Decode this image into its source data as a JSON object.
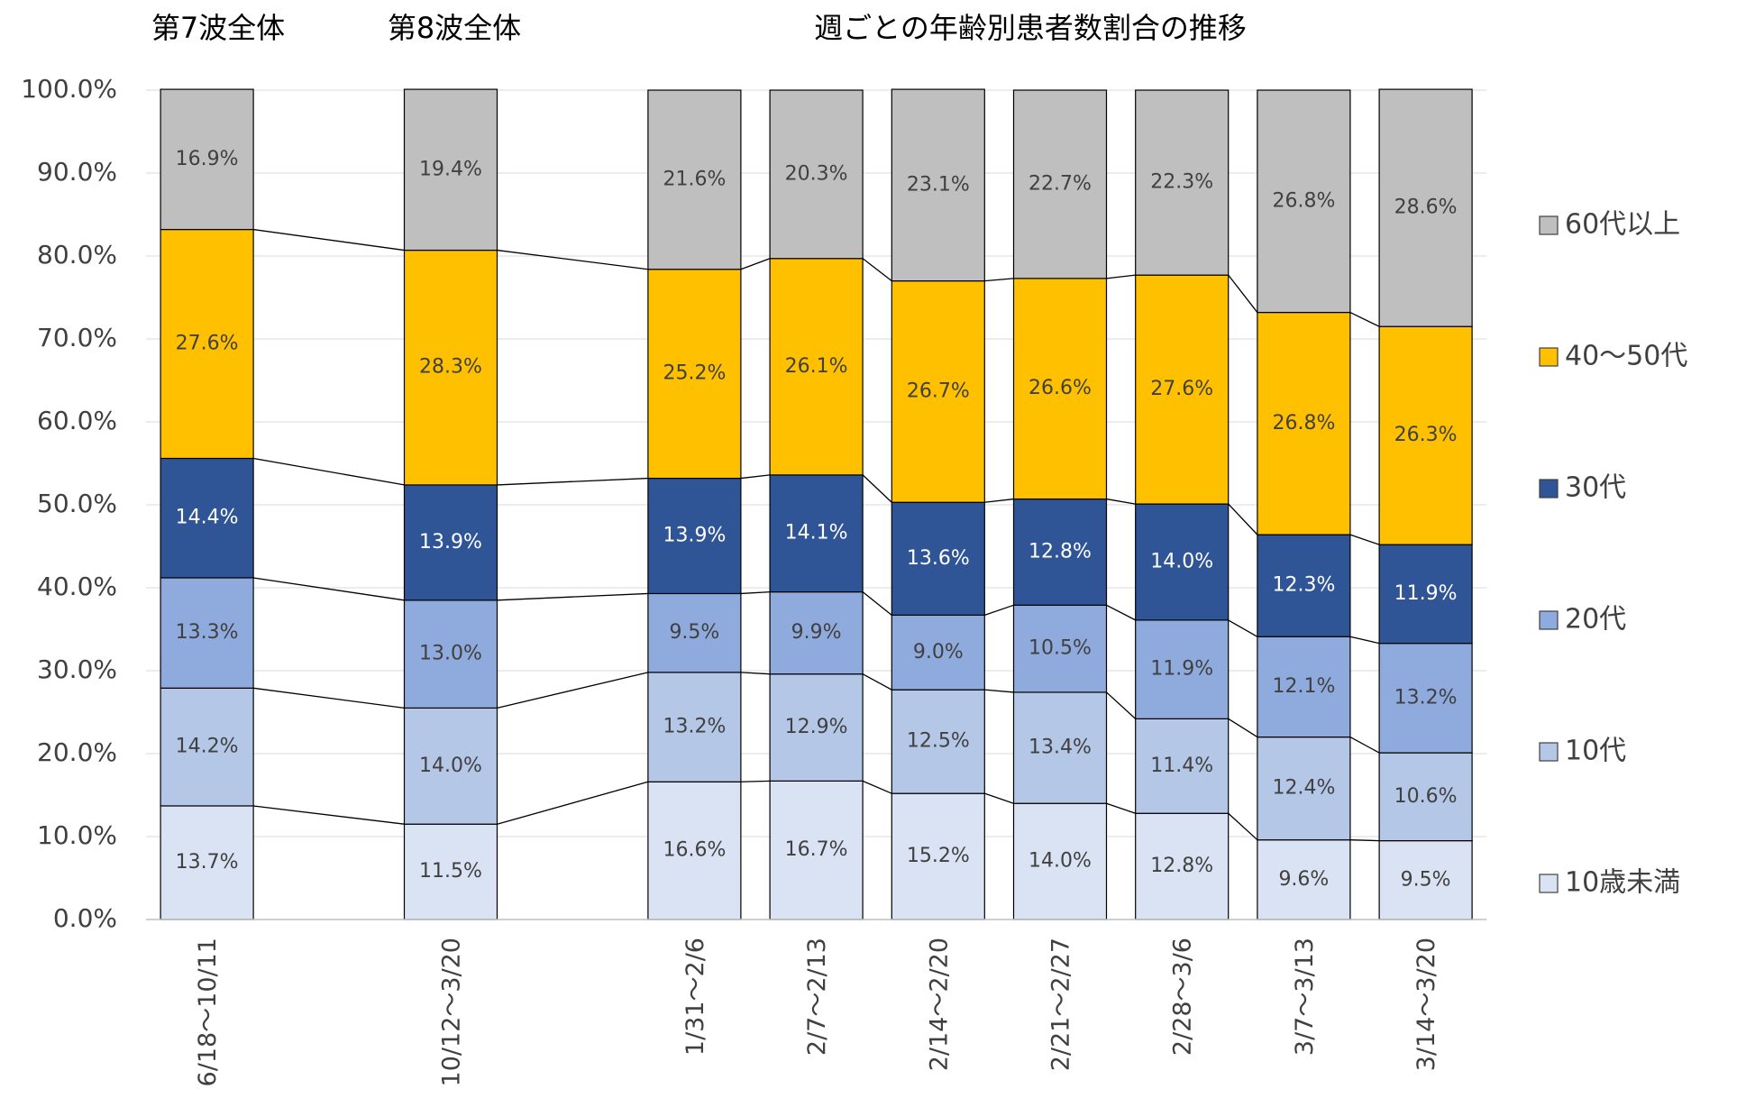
{
  "chart_data": {
    "type": "stacked_bar",
    "title": "週ごとの年齢別患者数割合の推移",
    "annotations": [
      "第7波全体",
      "第8波全体"
    ],
    "categories": [
      "6/18～10/11",
      null,
      "10/12～3/20",
      null,
      "1/31～2/6",
      "2/7～2/13",
      "2/14～2/20",
      "2/21～2/27",
      "2/28～3/6",
      "3/7～3/13",
      "3/14～3/20"
    ],
    "series": [
      {
        "name": "10歳未満",
        "color": "#dae3f3",
        "values": [
          13.7,
          null,
          11.5,
          null,
          16.6,
          16.7,
          15.2,
          14.0,
          12.8,
          9.6,
          9.5
        ],
        "value_labels": [
          "13.7%",
          null,
          "11.5%",
          null,
          "16.6%",
          "16.7%",
          "15.2%",
          "14.0%",
          "12.8%",
          "9.6%",
          "9.5%"
        ]
      },
      {
        "name": "10代",
        "color": "#b4c7e7",
        "values": [
          14.2,
          null,
          14.0,
          null,
          13.2,
          12.9,
          12.5,
          13.4,
          11.4,
          12.4,
          10.6
        ],
        "value_labels": [
          "14.2%",
          null,
          "14.0%",
          null,
          "13.2%",
          "12.9%",
          "12.5%",
          "13.4%",
          "11.4%",
          "12.4%",
          "10.6%"
        ]
      },
      {
        "name": "20代",
        "color": "#8faadc",
        "values": [
          13.3,
          null,
          13.0,
          null,
          9.5,
          9.9,
          9.0,
          10.5,
          11.9,
          12.1,
          13.2
        ],
        "value_labels": [
          "13.3%",
          null,
          "13.0%",
          null,
          "9.5%",
          "9.9%",
          "9.0%",
          "10.5%",
          "11.9%",
          "12.1%",
          "13.2%"
        ]
      },
      {
        "name": "30代",
        "color": "#2f5597",
        "values": [
          14.4,
          null,
          13.9,
          null,
          13.9,
          14.1,
          13.6,
          12.8,
          14.0,
          12.3,
          11.9
        ],
        "value_labels": [
          "14.4%",
          null,
          "13.9%",
          null,
          "13.9%",
          "14.1%",
          "13.6%",
          "12.8%",
          "14.0%",
          "12.3%",
          "11.9%"
        ]
      },
      {
        "name": "40～50代",
        "color": "#ffc000",
        "values": [
          27.6,
          null,
          28.3,
          null,
          25.2,
          26.1,
          26.7,
          26.6,
          27.6,
          26.8,
          26.3
        ],
        "value_labels": [
          "27.6%",
          null,
          "28.3%",
          null,
          "25.2%",
          "26.1%",
          "26.7%",
          "26.6%",
          "27.6%",
          "26.8%",
          "26.3%"
        ]
      },
      {
        "name": "60代以上",
        "color": "#bfbfbf",
        "values": [
          16.9,
          null,
          19.4,
          null,
          21.6,
          20.3,
          23.1,
          22.7,
          22.3,
          26.8,
          28.6
        ],
        "value_labels": [
          "16.9%",
          null,
          "19.4%",
          null,
          "21.6%",
          "20.3%",
          "23.1%",
          "22.7%",
          "22.3%",
          "26.8%",
          "28.6%"
        ]
      }
    ],
    "ylim": [
      0,
      100
    ],
    "yticks": [
      {
        "value": 0,
        "label": "0.0%"
      },
      {
        "value": 10,
        "label": "10.0%"
      },
      {
        "value": 20,
        "label": "20.0%"
      },
      {
        "value": 30,
        "label": "30.0%"
      },
      {
        "value": 40,
        "label": "40.0%"
      },
      {
        "value": 50,
        "label": "50.0%"
      },
      {
        "value": 60,
        "label": "60.0%"
      },
      {
        "value": 70,
        "label": "70.0%"
      },
      {
        "value": 80,
        "label": "80.0%"
      },
      {
        "value": 90,
        "label": "90.0%"
      },
      {
        "value": 100,
        "label": "100.0%"
      }
    ],
    "grid": true,
    "legend": "right"
  }
}
